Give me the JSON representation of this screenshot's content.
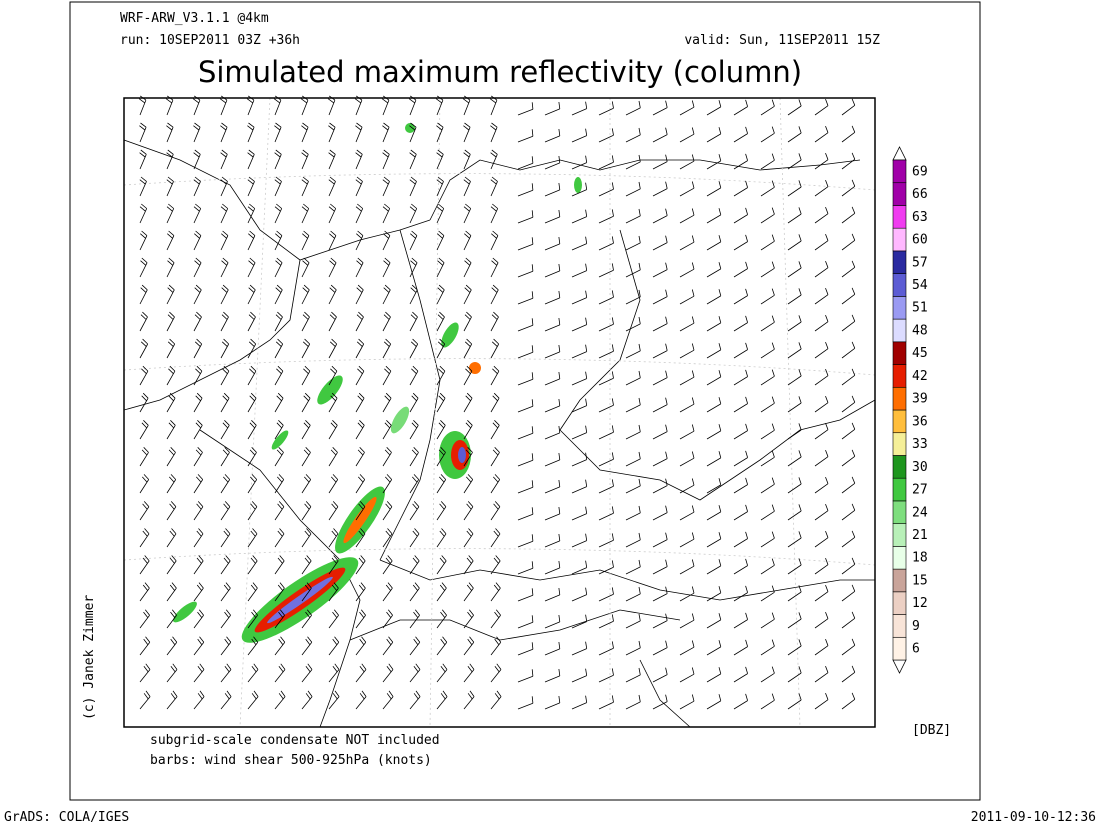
{
  "header": {
    "model": "WRF-ARW_V3.1.1 @4km",
    "run": "run: 10SEP2011 03Z +36h",
    "valid": "valid: Sun, 11SEP2011 15Z",
    "title": "Simulated maximum reflectivity (column)"
  },
  "credit": "(c) Janek Zimmer",
  "notes": [
    "subgrid-scale condensate NOT included",
    "barbs: wind shear 500-925hPa (knots)"
  ],
  "colorbar": {
    "unit": "[DBZ]",
    "levels": [
      6,
      9,
      12,
      15,
      18,
      21,
      24,
      27,
      30,
      33,
      36,
      39,
      42,
      45,
      48,
      51,
      54,
      57,
      60,
      63,
      66,
      69
    ],
    "colors": [
      "#fff2e6",
      "#f8e4d8",
      "#ecd0c4",
      "#c9a49a",
      "#e8ffe8",
      "#b8f0b8",
      "#7ede7e",
      "#40c840",
      "#1e961e",
      "#f5ef98",
      "#ffbe3c",
      "#ff6e00",
      "#e61e00",
      "#a00000",
      "#dcdcff",
      "#9a9af2",
      "#5c5cd4",
      "#2a2aa0",
      "#ffb8ff",
      "#f03cf0",
      "#a000a8"
    ]
  },
  "footer": {
    "left": "GrADS: COLA/IGES",
    "right": "2011-09-10-12:36"
  }
}
